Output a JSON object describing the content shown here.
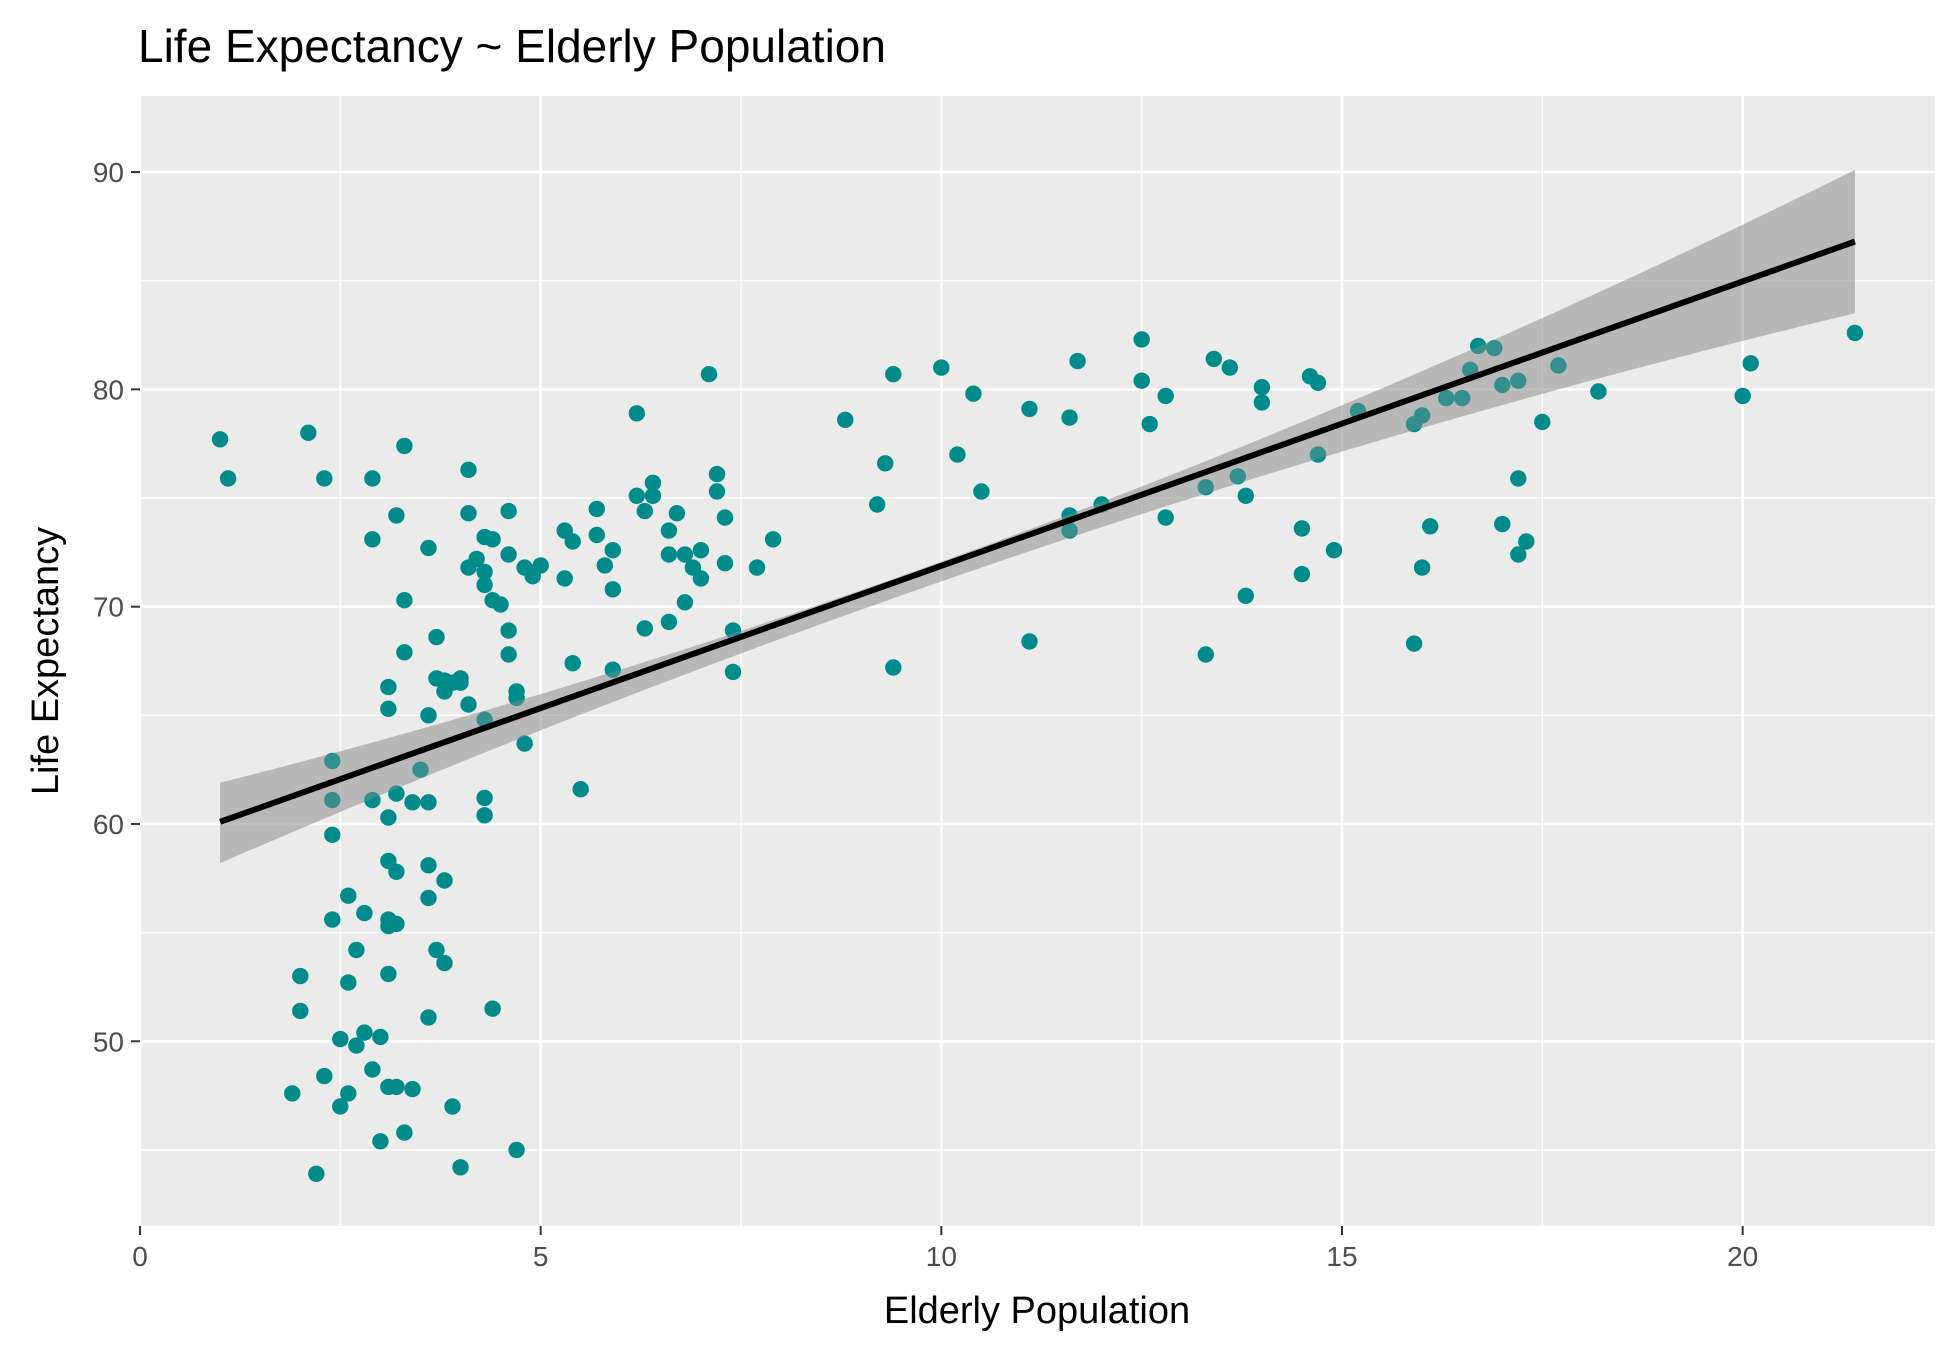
{
  "chart_data": {
    "type": "scatter",
    "title": "Life Expectancy ~ Elderly Population",
    "xlabel": "Elderly Population",
    "ylabel": "Life Expectancy",
    "xlim": [
      0,
      22.4
    ],
    "ylim": [
      41.5,
      93.5
    ],
    "x_ticks": [
      0,
      5,
      10,
      15,
      20
    ],
    "y_ticks": [
      50,
      60,
      70,
      80,
      90
    ],
    "grid": true,
    "legend": "none",
    "colors": {
      "panel": "#EBEBEB",
      "grid": "#FFFFFF",
      "point": "#008B8B",
      "line": "#000000",
      "ribbon": "#999999"
    },
    "series": [
      {
        "type": "scatter",
        "points": [
          [
            1.0,
            77.7
          ],
          [
            1.1,
            75.9
          ],
          [
            2.1,
            78.0
          ],
          [
            2.3,
            75.9
          ],
          [
            2.9,
            75.9
          ],
          [
            2.9,
            73.1
          ],
          [
            3.2,
            74.2
          ],
          [
            3.3,
            77.4
          ],
          [
            4.1,
            76.3
          ],
          [
            4.1,
            74.3
          ],
          [
            4.2,
            72.2
          ],
          [
            4.1,
            71.8
          ],
          [
            4.3,
            73.2
          ],
          [
            4.3,
            71.6
          ],
          [
            4.3,
            71.0
          ],
          [
            4.4,
            73.1
          ],
          [
            4.4,
            70.3
          ],
          [
            4.5,
            70.1
          ],
          [
            4.6,
            74.4
          ],
          [
            4.6,
            72.4
          ],
          [
            4.8,
            71.8
          ],
          [
            4.9,
            71.4
          ],
          [
            5.0,
            71.9
          ],
          [
            3.6,
            72.7
          ],
          [
            3.3,
            70.3
          ],
          [
            3.3,
            67.9
          ],
          [
            3.7,
            68.6
          ],
          [
            3.7,
            66.7
          ],
          [
            3.8,
            66.6
          ],
          [
            3.8,
            66.1
          ],
          [
            3.9,
            66.5
          ],
          [
            4.0,
            66.5
          ],
          [
            4.0,
            66.7
          ],
          [
            4.1,
            65.5
          ],
          [
            4.3,
            64.8
          ],
          [
            3.6,
            65.0
          ],
          [
            3.1,
            66.3
          ],
          [
            3.1,
            65.3
          ],
          [
            4.6,
            68.9
          ],
          [
            4.6,
            67.8
          ],
          [
            4.7,
            66.1
          ],
          [
            4.7,
            65.8
          ],
          [
            4.8,
            63.7
          ],
          [
            2.4,
            62.9
          ],
          [
            3.5,
            62.5
          ],
          [
            2.4,
            61.1
          ],
          [
            2.9,
            61.1
          ],
          [
            3.2,
            61.4
          ],
          [
            3.4,
            61.0
          ],
          [
            3.6,
            61.0
          ],
          [
            4.3,
            61.2
          ],
          [
            4.3,
            60.4
          ],
          [
            3.1,
            60.3
          ],
          [
            2.4,
            59.5
          ],
          [
            3.1,
            58.3
          ],
          [
            3.2,
            57.8
          ],
          [
            3.6,
            58.1
          ],
          [
            3.8,
            57.4
          ],
          [
            2.6,
            56.7
          ],
          [
            3.6,
            56.6
          ],
          [
            2.8,
            55.9
          ],
          [
            2.4,
            55.6
          ],
          [
            3.1,
            55.6
          ],
          [
            3.1,
            55.3
          ],
          [
            3.2,
            55.4
          ],
          [
            2.7,
            54.2
          ],
          [
            3.7,
            54.2
          ],
          [
            3.8,
            53.6
          ],
          [
            2.0,
            53.0
          ],
          [
            2.6,
            52.7
          ],
          [
            3.1,
            53.1
          ],
          [
            2.0,
            51.4
          ],
          [
            3.6,
            51.1
          ],
          [
            4.4,
            51.5
          ],
          [
            2.8,
            50.4
          ],
          [
            2.5,
            50.1
          ],
          [
            2.7,
            49.8
          ],
          [
            3.0,
            50.2
          ],
          [
            2.3,
            48.4
          ],
          [
            2.9,
            48.7
          ],
          [
            1.9,
            47.6
          ],
          [
            2.6,
            47.6
          ],
          [
            3.1,
            47.9
          ],
          [
            3.2,
            47.9
          ],
          [
            3.4,
            47.8
          ],
          [
            2.5,
            47.0
          ],
          [
            3.9,
            47.0
          ],
          [
            3.0,
            45.4
          ],
          [
            3.3,
            45.8
          ],
          [
            4.7,
            45.0
          ],
          [
            4.0,
            44.2
          ],
          [
            2.2,
            43.9
          ],
          [
            5.3,
            73.5
          ],
          [
            5.4,
            73.0
          ],
          [
            5.7,
            74.5
          ],
          [
            5.7,
            73.3
          ],
          [
            5.8,
            71.9
          ],
          [
            5.9,
            72.6
          ],
          [
            5.3,
            71.3
          ],
          [
            5.9,
            70.8
          ],
          [
            6.2,
            78.9
          ],
          [
            6.2,
            75.1
          ],
          [
            6.3,
            74.4
          ],
          [
            6.4,
            75.7
          ],
          [
            6.4,
            75.1
          ],
          [
            6.6,
            73.5
          ],
          [
            6.6,
            72.4
          ],
          [
            6.7,
            74.3
          ],
          [
            6.8,
            72.4
          ],
          [
            6.9,
            71.8
          ],
          [
            7.0,
            72.6
          ],
          [
            7.0,
            71.3
          ],
          [
            7.1,
            80.7
          ],
          [
            7.2,
            76.1
          ],
          [
            7.2,
            75.3
          ],
          [
            7.3,
            74.1
          ],
          [
            7.3,
            72.0
          ],
          [
            7.7,
            71.8
          ],
          [
            7.9,
            73.1
          ],
          [
            6.8,
            70.2
          ],
          [
            6.6,
            69.3
          ],
          [
            6.3,
            69.0
          ],
          [
            7.4,
            68.9
          ],
          [
            7.4,
            67.0
          ],
          [
            5.9,
            67.1
          ],
          [
            5.4,
            67.4
          ],
          [
            5.5,
            61.6
          ],
          [
            8.8,
            78.6
          ],
          [
            9.2,
            74.7
          ],
          [
            9.3,
            76.6
          ],
          [
            9.4,
            80.7
          ],
          [
            9.4,
            67.2
          ],
          [
            10.0,
            81.0
          ],
          [
            10.2,
            77.0
          ],
          [
            10.4,
            79.8
          ],
          [
            10.5,
            75.3
          ],
          [
            11.1,
            79.1
          ],
          [
            11.1,
            68.4
          ],
          [
            11.6,
            78.7
          ],
          [
            11.6,
            74.2
          ],
          [
            11.6,
            73.5
          ],
          [
            11.7,
            81.3
          ],
          [
            12.0,
            74.7
          ],
          [
            12.5,
            82.3
          ],
          [
            12.5,
            80.4
          ],
          [
            12.6,
            78.4
          ],
          [
            12.8,
            79.7
          ],
          [
            12.8,
            74.1
          ],
          [
            13.3,
            75.5
          ],
          [
            13.3,
            67.8
          ],
          [
            13.4,
            81.4
          ],
          [
            13.6,
            81.0
          ],
          [
            13.7,
            76.0
          ],
          [
            13.8,
            75.1
          ],
          [
            13.8,
            70.5
          ],
          [
            14.0,
            80.1
          ],
          [
            14.0,
            79.4
          ],
          [
            14.5,
            73.6
          ],
          [
            14.5,
            71.5
          ],
          [
            14.6,
            80.6
          ],
          [
            14.7,
            80.3
          ],
          [
            14.7,
            77.0
          ],
          [
            14.9,
            72.6
          ],
          [
            15.2,
            79.0
          ],
          [
            15.9,
            78.4
          ],
          [
            15.9,
            68.3
          ],
          [
            16.0,
            78.8
          ],
          [
            16.0,
            71.8
          ],
          [
            16.1,
            73.7
          ],
          [
            16.3,
            79.6
          ],
          [
            16.5,
            79.6
          ],
          [
            16.6,
            80.9
          ],
          [
            16.7,
            82.0
          ],
          [
            16.9,
            81.9
          ],
          [
            17.0,
            80.2
          ],
          [
            17.0,
            73.8
          ],
          [
            17.2,
            80.4
          ],
          [
            17.2,
            75.9
          ],
          [
            17.2,
            72.4
          ],
          [
            17.3,
            73.0
          ],
          [
            17.5,
            78.5
          ],
          [
            17.7,
            81.1
          ],
          [
            18.2,
            79.9
          ],
          [
            20.0,
            79.7
          ],
          [
            20.1,
            81.2
          ],
          [
            21.4,
            82.6
          ]
        ]
      },
      {
        "type": "regression",
        "x_range": [
          1.0,
          21.4
        ],
        "y_at_range": [
          60.1,
          86.8
        ],
        "ci_lower": [
          58.2,
          83.5
        ],
        "ci_upper": [
          61.9,
          90.1
        ],
        "ci_at_center": [
          12.2,
          73.9,
          75.1
        ]
      }
    ]
  }
}
